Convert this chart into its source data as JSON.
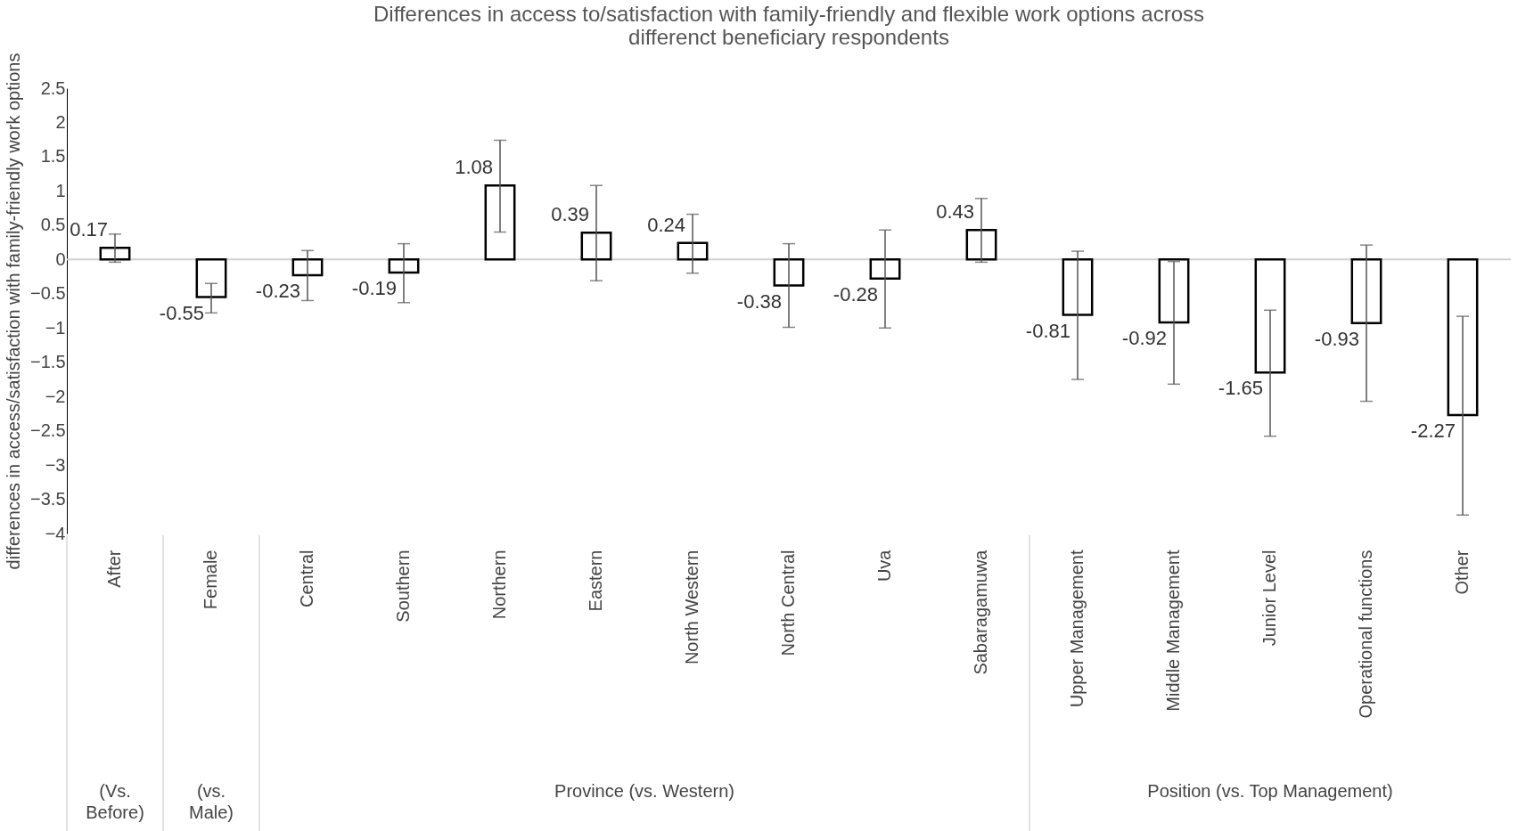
{
  "chart_data": {
    "type": "bar",
    "title": "Differences in access to/satisfaction with family-friendly and flexible work options across differenct beneficiary respondents",
    "ylabel": "differences in access/satisfaction with family-friendly work options",
    "categories": [
      "After",
      "Female",
      "Central",
      "Southern",
      "Northern",
      "Eastern",
      "North Western",
      "North Central",
      "Uva",
      "Sabaragamuwa",
      "Upper Management",
      "Middle Management",
      "Junior Level",
      "Operational functions",
      "Other"
    ],
    "values": [
      0.17,
      -0.55,
      -0.23,
      -0.19,
      1.08,
      0.39,
      0.24,
      -0.38,
      -0.28,
      0.43,
      -0.81,
      -0.92,
      -1.65,
      -0.93,
      -2.27
    ],
    "errors": [
      [
        -0.04,
        0.37
      ],
      [
        -0.78,
        -0.35
      ],
      [
        -0.6,
        0.13
      ],
      [
        -0.63,
        0.23
      ],
      [
        0.4,
        1.74
      ],
      [
        -0.31,
        1.08
      ],
      [
        -0.2,
        0.66
      ],
      [
        -0.99,
        0.23
      ],
      [
        -1.0,
        0.43
      ],
      [
        -0.04,
        0.89
      ],
      [
        -1.75,
        0.12
      ],
      [
        -1.82,
        -0.03
      ],
      [
        -2.58,
        -0.74
      ],
      [
        -2.07,
        0.21
      ],
      [
        -3.73,
        -0.83
      ]
    ],
    "color": "#ffffff",
    "data_labels": true,
    "ylim": [
      -4,
      2.5
    ],
    "yticks": [
      -4,
      -3.5,
      -3,
      -2.5,
      -2,
      -1.5,
      -1,
      -0.5,
      0,
      0.5,
      1,
      1.5,
      2,
      2.5
    ],
    "grid": false,
    "ref_lines": [
      {
        "axis": "y",
        "value": 0,
        "color": "#d0d0d0"
      }
    ],
    "annotations": [
      "(Vs.\nBefore)",
      "(vs.\nMale)",
      "Province (vs. Western)",
      "Position (vs. Top Management)"
    ]
  }
}
